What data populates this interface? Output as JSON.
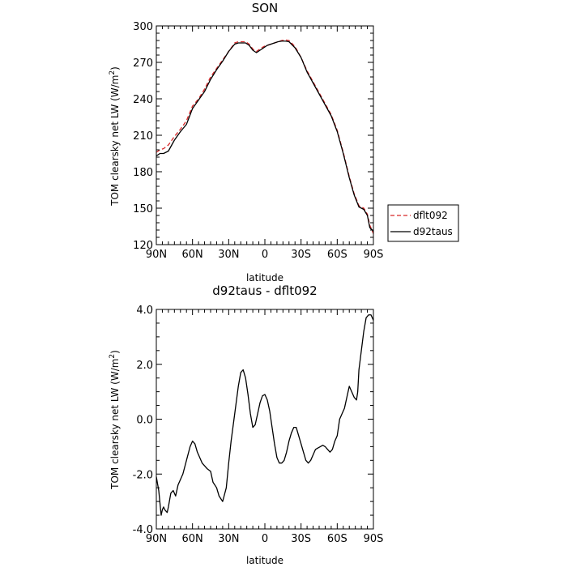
{
  "chart_data": [
    {
      "type": "line",
      "title": "SON",
      "xlabel": "latitude",
      "ylabel": "TOM clearsky net LW (W/m",
      "ylabel_sup": "2",
      "ylabel_close": ")",
      "xlim": [
        90,
        -90
      ],
      "ylim": [
        120,
        300
      ],
      "xticks": [
        90,
        60,
        30,
        0,
        -30,
        -60,
        -90
      ],
      "xtick_labels": [
        "90N",
        "60N",
        "30N",
        "0",
        "30S",
        "60S",
        "90S"
      ],
      "yticks": [
        120,
        150,
        180,
        210,
        240,
        270,
        300
      ],
      "ytick_labels": [
        "120",
        "150",
        "180",
        "210",
        "240",
        "270",
        "300"
      ],
      "grid": false,
      "legend": "right",
      "series": [
        {
          "name": "dflt092",
          "color": "#d62728",
          "dash": "dashed",
          "x": [
            90,
            87,
            84,
            80,
            75,
            70,
            65,
            60,
            55,
            50,
            45,
            40,
            35,
            30,
            25,
            22,
            19,
            16,
            13,
            10,
            7,
            4,
            1,
            -2,
            -5,
            -8,
            -11,
            -14,
            -17,
            -20,
            -25,
            -30,
            -35,
            -40,
            -45,
            -50,
            -55,
            -60,
            -65,
            -70,
            -74,
            -78,
            -82,
            -85,
            -87,
            -90
          ],
          "y": [
            196,
            198,
            199,
            202,
            209,
            215,
            222,
            234,
            240,
            248,
            258,
            265,
            272,
            279,
            286,
            287,
            287,
            287,
            285,
            281,
            279,
            281,
            283,
            284,
            285,
            286,
            287,
            288,
            288.5,
            288,
            283,
            274,
            263,
            254,
            245,
            236,
            227,
            214,
            196,
            176,
            162,
            152,
            150,
            145,
            136,
            129
          ]
        },
        {
          "name": "d92taus",
          "color": "#000000",
          "dash": "solid",
          "x": [
            90,
            87,
            84,
            80,
            75,
            70,
            65,
            60,
            55,
            50,
            45,
            40,
            35,
            30,
            25,
            22,
            19,
            16,
            13,
            10,
            7,
            4,
            1,
            -2,
            -5,
            -8,
            -11,
            -14,
            -17,
            -20,
            -25,
            -30,
            -35,
            -40,
            -45,
            -50,
            -55,
            -60,
            -65,
            -70,
            -74,
            -78,
            -82,
            -85,
            -87,
            -90
          ],
          "y": [
            193,
            195,
            195,
            197,
            206,
            213,
            219,
            232,
            239,
            246,
            256,
            264,
            271,
            279,
            285,
            286,
            286,
            286,
            284,
            280,
            278,
            280,
            282,
            284,
            285,
            286,
            287,
            287.5,
            287.5,
            287,
            282,
            274,
            262,
            253,
            244,
            235,
            226,
            213,
            195,
            175,
            161,
            151,
            149,
            144,
            134,
            131
          ]
        }
      ]
    },
    {
      "type": "line",
      "title": "d92taus - dflt092",
      "xlabel": "latitude",
      "ylabel": "TOM clearsky net LW (W/m",
      "ylabel_sup": "2",
      "ylabel_close": ")",
      "xlim": [
        90,
        -90
      ],
      "ylim": [
        -4.0,
        4.0
      ],
      "xticks": [
        90,
        60,
        30,
        0,
        -30,
        -60,
        -90
      ],
      "xtick_labels": [
        "90N",
        "60N",
        "30N",
        "0",
        "30S",
        "60S",
        "90S"
      ],
      "yticks": [
        -4.0,
        -2.0,
        0.0,
        2.0,
        4.0
      ],
      "ytick_labels": [
        "-4.0",
        "-2.0",
        "0.0",
        "2.0",
        "4.0"
      ],
      "grid": false,
      "series": [
        {
          "color": "#000000",
          "dash": "solid",
          "x": [
            90,
            88,
            86,
            85,
            84,
            83,
            81,
            80,
            78,
            76,
            74,
            72,
            70,
            68,
            65,
            62,
            60,
            58,
            56,
            54,
            52,
            50,
            48,
            45,
            43,
            40,
            38,
            35,
            32,
            30,
            28,
            25,
            22,
            20,
            18,
            16,
            14,
            12,
            10,
            8,
            6,
            4,
            2,
            0,
            -2,
            -4,
            -6,
            -8,
            -10,
            -12,
            -14,
            -16,
            -18,
            -20,
            -22,
            -24,
            -26,
            -28,
            -30,
            -32,
            -34,
            -36,
            -38,
            -40,
            -42,
            -44,
            -46,
            -48,
            -50,
            -52,
            -54,
            -56,
            -58,
            -60,
            -62,
            -64,
            -66,
            -68,
            -70,
            -72,
            -74,
            -76,
            -77,
            -78,
            -80,
            -82,
            -84,
            -86,
            -88,
            -89,
            -90
          ],
          "y": [
            -2.1,
            -2.6,
            -3.5,
            -3.3,
            -3.2,
            -3.3,
            -3.4,
            -3.2,
            -2.7,
            -2.6,
            -2.8,
            -2.4,
            -2.2,
            -2.0,
            -1.5,
            -1.0,
            -0.8,
            -0.9,
            -1.2,
            -1.4,
            -1.6,
            -1.7,
            -1.8,
            -1.9,
            -2.3,
            -2.5,
            -2.8,
            -3.0,
            -2.5,
            -1.6,
            -0.8,
            0.2,
            1.2,
            1.7,
            1.8,
            1.5,
            0.9,
            0.2,
            -0.3,
            -0.2,
            0.2,
            0.6,
            0.85,
            0.9,
            0.7,
            0.3,
            -0.3,
            -0.9,
            -1.4,
            -1.6,
            -1.6,
            -1.5,
            -1.2,
            -0.8,
            -0.5,
            -0.3,
            -0.3,
            -0.6,
            -0.9,
            -1.2,
            -1.5,
            -1.6,
            -1.5,
            -1.3,
            -1.1,
            -1.05,
            -1.0,
            -0.95,
            -1.0,
            -1.1,
            -1.2,
            -1.1,
            -0.8,
            -0.6,
            0.0,
            0.2,
            0.4,
            0.8,
            1.2,
            1.0,
            0.8,
            0.7,
            1.0,
            1.8,
            2.5,
            3.2,
            3.7,
            3.8,
            3.8,
            3.7,
            3.6
          ]
        }
      ]
    }
  ]
}
